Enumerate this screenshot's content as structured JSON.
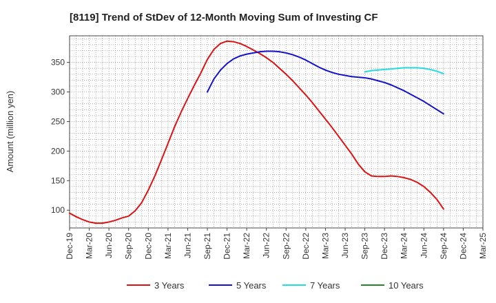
{
  "chart_data": {
    "type": "line",
    "title": "[8119]  Trend of StDev of 12-Month Moving Sum of Investing CF",
    "xlabel": "",
    "ylabel": "Amount (million yen)",
    "ylim": [
      70,
      395
    ],
    "yticks": [
      100,
      150,
      200,
      250,
      300,
      350
    ],
    "x_categories": [
      "Dec-19",
      "Mar-20",
      "Jun-20",
      "Sep-20",
      "Dec-20",
      "Mar-21",
      "Jun-21",
      "Sep-21",
      "Dec-21",
      "Mar-22",
      "Jun-22",
      "Sep-22",
      "Dec-22",
      "Mar-23",
      "Jun-23",
      "Sep-23",
      "Dec-23",
      "Mar-24",
      "Jun-24",
      "Sep-24",
      "Dec-24",
      "Mar-25"
    ],
    "grid": true,
    "legend_position": "bottom",
    "series": [
      {
        "name": "3 Years",
        "color": "#dd1111",
        "x": [
          "Dec-19",
          "Jan-20",
          "Feb-20",
          "Mar-20",
          "Apr-20",
          "May-20",
          "Jun-20",
          "Jul-20",
          "Aug-20",
          "Sep-20",
          "Oct-20",
          "Nov-20",
          "Dec-20",
          "Jan-21",
          "Feb-21",
          "Mar-21",
          "Apr-21",
          "May-21",
          "Jun-21",
          "Jul-21",
          "Aug-21",
          "Sep-21",
          "Oct-21",
          "Nov-21",
          "Dec-21",
          "Jan-22",
          "Feb-22",
          "Mar-22",
          "Apr-22",
          "May-22",
          "Jun-22",
          "Jul-22",
          "Aug-22",
          "Sep-22",
          "Oct-22",
          "Nov-22",
          "Dec-22",
          "Jan-23",
          "Feb-23",
          "Mar-23",
          "Apr-23",
          "May-23",
          "Jun-23",
          "Jul-23",
          "Aug-23",
          "Sep-23",
          "Oct-23",
          "Nov-23",
          "Dec-23",
          "Jan-24",
          "Feb-24",
          "Mar-24",
          "Apr-24",
          "May-24",
          "Jun-24",
          "Jul-24",
          "Aug-24",
          "Sep-24"
        ],
        "values": [
          95,
          89,
          84,
          80,
          78,
          78,
          80,
          83,
          87,
          90,
          99,
          113,
          134,
          158,
          185,
          213,
          241,
          266,
          289,
          311,
          332,
          355,
          372,
          382,
          386,
          385,
          382,
          377,
          371,
          365,
          358,
          350,
          340,
          330,
          319,
          307,
          295,
          282,
          268,
          254,
          240,
          225,
          210,
          195,
          178,
          165,
          158,
          157,
          157,
          158,
          157,
          155,
          152,
          147,
          140,
          130,
          118,
          102
        ]
      },
      {
        "name": "5 Years",
        "color": "#1111cc",
        "x": [
          "Sep-21",
          "Oct-21",
          "Nov-21",
          "Dec-21",
          "Jan-22",
          "Feb-22",
          "Mar-22",
          "Apr-22",
          "May-22",
          "Jun-22",
          "Jul-22",
          "Aug-22",
          "Sep-22",
          "Oct-22",
          "Nov-22",
          "Dec-22",
          "Jan-23",
          "Feb-23",
          "Mar-23",
          "Apr-23",
          "May-23",
          "Jun-23",
          "Jul-23",
          "Aug-23",
          "Sep-23",
          "Oct-23",
          "Nov-23",
          "Dec-23",
          "Jan-24",
          "Feb-24",
          "Mar-24",
          "Apr-24",
          "May-24",
          "Jun-24",
          "Jul-24",
          "Aug-24",
          "Sep-24"
        ],
        "values": [
          300,
          322,
          337,
          348,
          356,
          361,
          364,
          366,
          368,
          369,
          369,
          368,
          366,
          363,
          359,
          354,
          348,
          342,
          337,
          333,
          330,
          328,
          326,
          325,
          324,
          322,
          319,
          316,
          312,
          307,
          302,
          296,
          290,
          284,
          277,
          270,
          263
        ]
      },
      {
        "name": "7 Years",
        "color": "#22dddd",
        "x": [
          "Sep-23",
          "Oct-23",
          "Nov-23",
          "Dec-23",
          "Jan-24",
          "Feb-24",
          "Mar-24",
          "Apr-24",
          "May-24",
          "Jun-24",
          "Jul-24",
          "Aug-24",
          "Sep-24"
        ],
        "values": [
          334,
          336,
          337,
          338,
          339,
          340,
          341,
          341,
          341,
          340,
          338,
          335,
          331
        ]
      },
      {
        "name": "10 Years",
        "color": "#228822",
        "x": [],
        "values": []
      }
    ]
  }
}
